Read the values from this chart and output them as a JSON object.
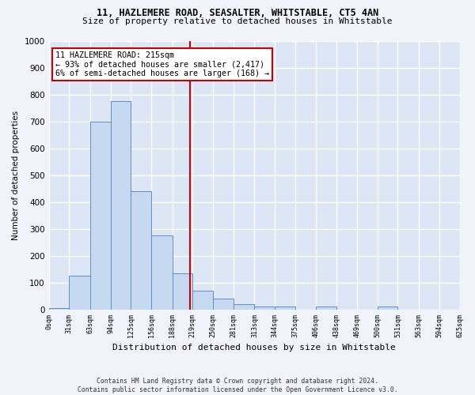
{
  "title_line1": "11, HAZLEMERE ROAD, SEASALTER, WHITSTABLE, CT5 4AN",
  "title_line2": "Size of property relative to detached houses in Whitstable",
  "xlabel": "Distribution of detached houses by size in Whitstable",
  "ylabel": "Number of detached properties",
  "annotation_line1": "11 HAZLEMERE ROAD: 215sqm",
  "annotation_line2": "← 93% of detached houses are smaller (2,417)",
  "annotation_line3": "6% of semi-detached houses are larger (168) →",
  "property_size": 215,
  "bin_edges": [
    0,
    31,
    63,
    94,
    125,
    156,
    188,
    219,
    250,
    281,
    313,
    344,
    375,
    406,
    438,
    469,
    500,
    531,
    563,
    594,
    625
  ],
  "bar_heights": [
    5,
    125,
    700,
    775,
    440,
    275,
    135,
    70,
    40,
    20,
    10,
    10,
    0,
    10,
    0,
    0,
    10,
    0,
    0,
    0
  ],
  "bar_color": "#c6d9f0",
  "bar_edge_color": "#5a8fc3",
  "vline_color": "#cc0000",
  "vline_x": 215,
  "annotation_box_color": "#cc0000",
  "background_color": "#dce6f5",
  "grid_color": "#ffffff",
  "ylim": [
    0,
    1000
  ],
  "yticks": [
    0,
    100,
    200,
    300,
    400,
    500,
    600,
    700,
    800,
    900,
    1000
  ],
  "footer_line1": "Contains HM Land Registry data © Crown copyright and database right 2024.",
  "footer_line2": "Contains public sector information licensed under the Open Government Licence v3.0.",
  "fig_bg": "#f0f4fa"
}
